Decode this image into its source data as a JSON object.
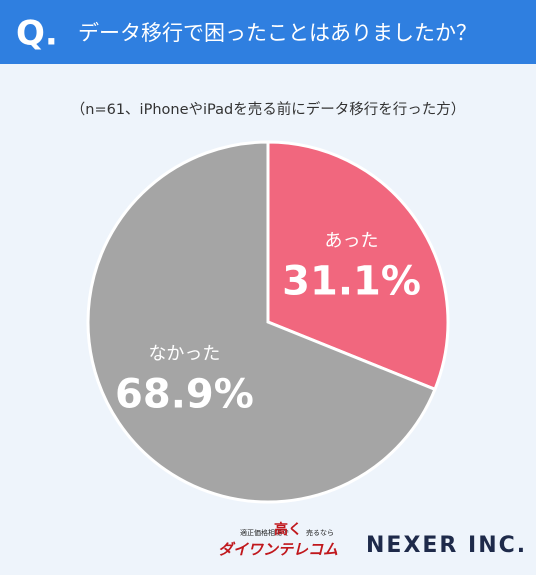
{
  "chart_data": {
    "type": "pie",
    "title_prefix": "Q.",
    "title": "データ移行で困ったことはありましたか？",
    "subtitle": "（n=61、iPhoneやiPadを売る前にデータ移行を行った方）",
    "categories": [
      "あった",
      "なかった"
    ],
    "values": [
      31.1,
      68.9
    ],
    "value_labels": [
      "31.1%",
      "68.9%"
    ],
    "colors": [
      "#f1677e",
      "#a5a5a5"
    ],
    "credits": {
      "logo1_top": "適正価格相場で",
      "logo1_big": "高く",
      "logo1_top2": "売るなら",
      "logo1_name": "ダイワンテレコム",
      "logo2": "NEXER INC."
    }
  }
}
